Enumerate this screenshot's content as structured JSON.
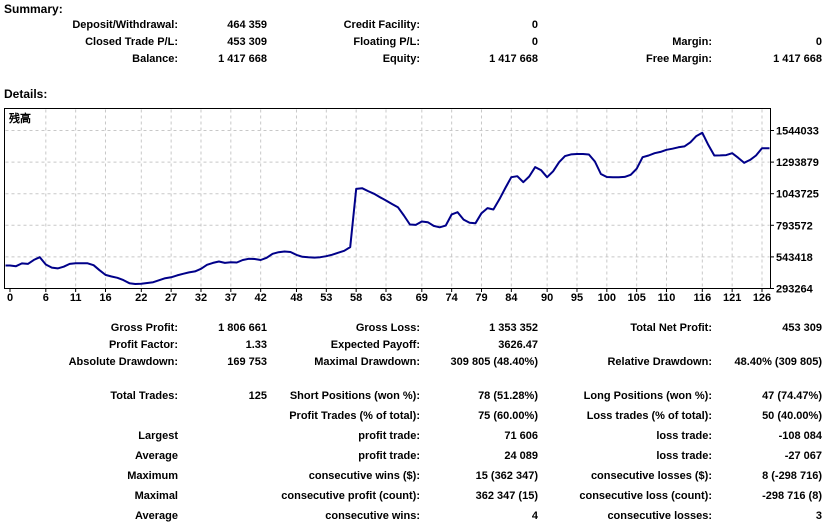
{
  "summary": {
    "header": "Summary:",
    "rows": [
      [
        "Deposit/Withdrawal:",
        "464 359",
        "Credit Facility:",
        "0",
        "",
        ""
      ],
      [
        "Closed Trade P/L:",
        "453 309",
        "Floating P/L:",
        "0",
        "Margin:",
        "0"
      ],
      [
        "Balance:",
        "1 417 668",
        "Equity:",
        "1 417 668",
        "Free Margin:",
        "1 417 668"
      ]
    ]
  },
  "details": {
    "header": "Details:"
  },
  "stats1": {
    "rows": [
      [
        "Gross Profit:",
        "1 806 661",
        "Gross Loss:",
        "1 353 352",
        "Total Net Profit:",
        "453 309"
      ],
      [
        "Profit Factor:",
        "1.33",
        "Expected Payoff:",
        "3626.47",
        "",
        ""
      ],
      [
        "Absolute Drawdown:",
        "169 753",
        "Maximal Drawdown:",
        "309 805 (48.40%)",
        "Relative Drawdown:",
        "48.40% (309 805)"
      ]
    ]
  },
  "stats2": {
    "rows": [
      [
        "Total Trades:",
        "125",
        "Short Positions (won %):",
        "78 (51.28%)",
        "Long Positions (won %):",
        "47 (74.47%)"
      ],
      [
        "",
        "",
        "Profit Trades (% of total):",
        "75 (60.00%)",
        "Loss trades (% of total):",
        "50 (40.00%)"
      ],
      [
        "Largest",
        "",
        "profit trade:",
        "71 606",
        "loss trade:",
        "-108 084"
      ],
      [
        "Average",
        "",
        "profit trade:",
        "24 089",
        "loss trade:",
        "-27 067"
      ],
      [
        "Maximum",
        "",
        "consecutive wins ($):",
        "15 (362 347)",
        "consecutive losses ($):",
        "8 (-298 716)"
      ],
      [
        "Maximal",
        "",
        "consecutive profit (count):",
        "362 347 (15)",
        "consecutive loss (count):",
        "-298 716 (8)"
      ],
      [
        "Average",
        "",
        "consecutive wins:",
        "4",
        "consecutive losses:",
        "3"
      ]
    ]
  },
  "chart_data": {
    "type": "line",
    "title": "残高",
    "legend": "残高",
    "line_color": "#000089",
    "grid_color": "#c8c8c8",
    "border_color": "#000000",
    "x_range": [
      0,
      126
    ],
    "y_ticks": [
      1544033,
      1293879,
      1043725,
      793572,
      543418,
      293264
    ],
    "x_ticks": [
      0,
      6,
      11,
      16,
      22,
      27,
      32,
      37,
      42,
      48,
      53,
      58,
      63,
      69,
      74,
      79,
      84,
      90,
      95,
      100,
      105,
      110,
      116,
      121,
      126
    ],
    "series": [
      {
        "name": "残高",
        "values": [
          475000,
          470000,
          492000,
          488000,
          520000,
          541000,
          483000,
          459000,
          452000,
          466000,
          488000,
          493000,
          493000,
          493000,
          478000,
          438000,
          401000,
          388000,
          378000,
          360000,
          335000,
          329000,
          331000,
          337000,
          343000,
          359000,
          375000,
          382000,
          397000,
          410000,
          421000,
          429000,
          449000,
          481000,
          496000,
          507000,
          496000,
          501000,
          499000,
          519000,
          528000,
          527000,
          519000,
          536000,
          568000,
          581000,
          586000,
          582000,
          559000,
          544000,
          540000,
          538000,
          541000,
          549000,
          561000,
          577000,
          592000,
          621000,
          1082000,
          1087000,
          1064000,
          1043000,
          1016000,
          990000,
          962000,
          937000,
          871000,
          800000,
          797000,
          824000,
          818000,
          789000,
          778000,
          791000,
          880000,
          897000,
          839000,
          813000,
          810000,
          889000,
          930000,
          919000,
          999000,
          1090000,
          1174000,
          1182000,
          1135000,
          1180000,
          1254000,
          1229000,
          1174000,
          1221000,
          1293000,
          1341000,
          1355000,
          1358000,
          1358000,
          1354000,
          1299000,
          1200000,
          1176000,
          1174000,
          1174000,
          1177000,
          1193000,
          1242000,
          1333000,
          1346000,
          1364000,
          1375000,
          1391000,
          1400000,
          1411000,
          1418000,
          1451000,
          1500000,
          1526000,
          1430000,
          1346000,
          1347000,
          1349000,
          1364000,
          1329000,
          1288000,
          1311000,
          1346000,
          1404000
        ]
      }
    ]
  }
}
